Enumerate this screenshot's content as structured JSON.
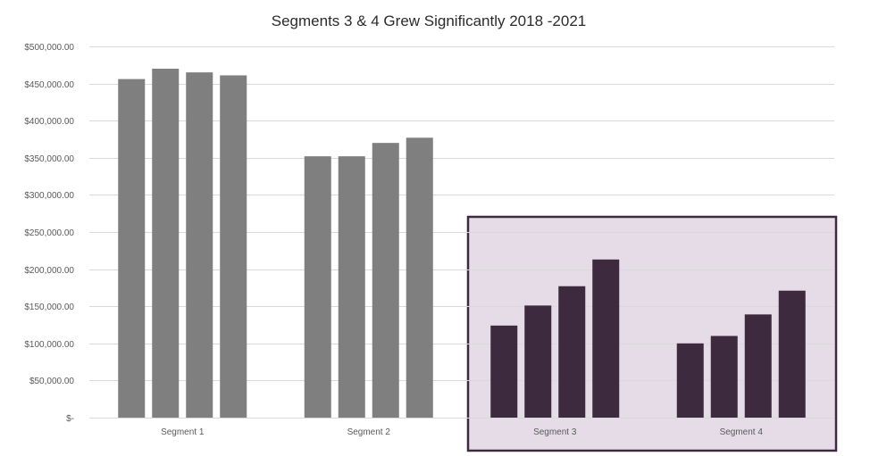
{
  "chart_data": {
    "type": "bar",
    "title": "Segments 3 & 4 Grew Significantly 2018  -2021",
    "xlabel": "",
    "ylabel": "",
    "categories": [
      "Segment 1",
      "Segment 2",
      "Segment 3",
      "Segment 4"
    ],
    "series": [
      {
        "values": [
          456000,
          352000,
          124000,
          100000
        ]
      },
      {
        "values": [
          470000,
          352000,
          151000,
          110000
        ]
      },
      {
        "values": [
          465000,
          370000,
          177000,
          139000
        ]
      },
      {
        "values": [
          461000,
          377000,
          213000,
          171000
        ]
      }
    ],
    "ylim": [
      0,
      500000
    ],
    "yticks": [
      0,
      50000,
      100000,
      150000,
      200000,
      250000,
      300000,
      350000,
      400000,
      450000,
      500000
    ],
    "ytick_labels": [
      "$-",
      "$50,000.00",
      "$100,000.00",
      "$150,000.00",
      "$200,000.00",
      "$250,000.00",
      "$300,000.00",
      "$350,000.00",
      "$400,000.00",
      "$450,000.00",
      "$500,000.00"
    ],
    "grid": true,
    "legend": "none",
    "highlight": {
      "categories": [
        "Segment 3",
        "Segment 4"
      ]
    },
    "colors": {
      "bar": "#7f7f7f",
      "bar_highlight": "#3d2a3f",
      "highlight_fill": "#e6dce8",
      "highlight_border": "#3d2a3f",
      "grid": "#d9d9d9",
      "text": "#595959"
    }
  }
}
